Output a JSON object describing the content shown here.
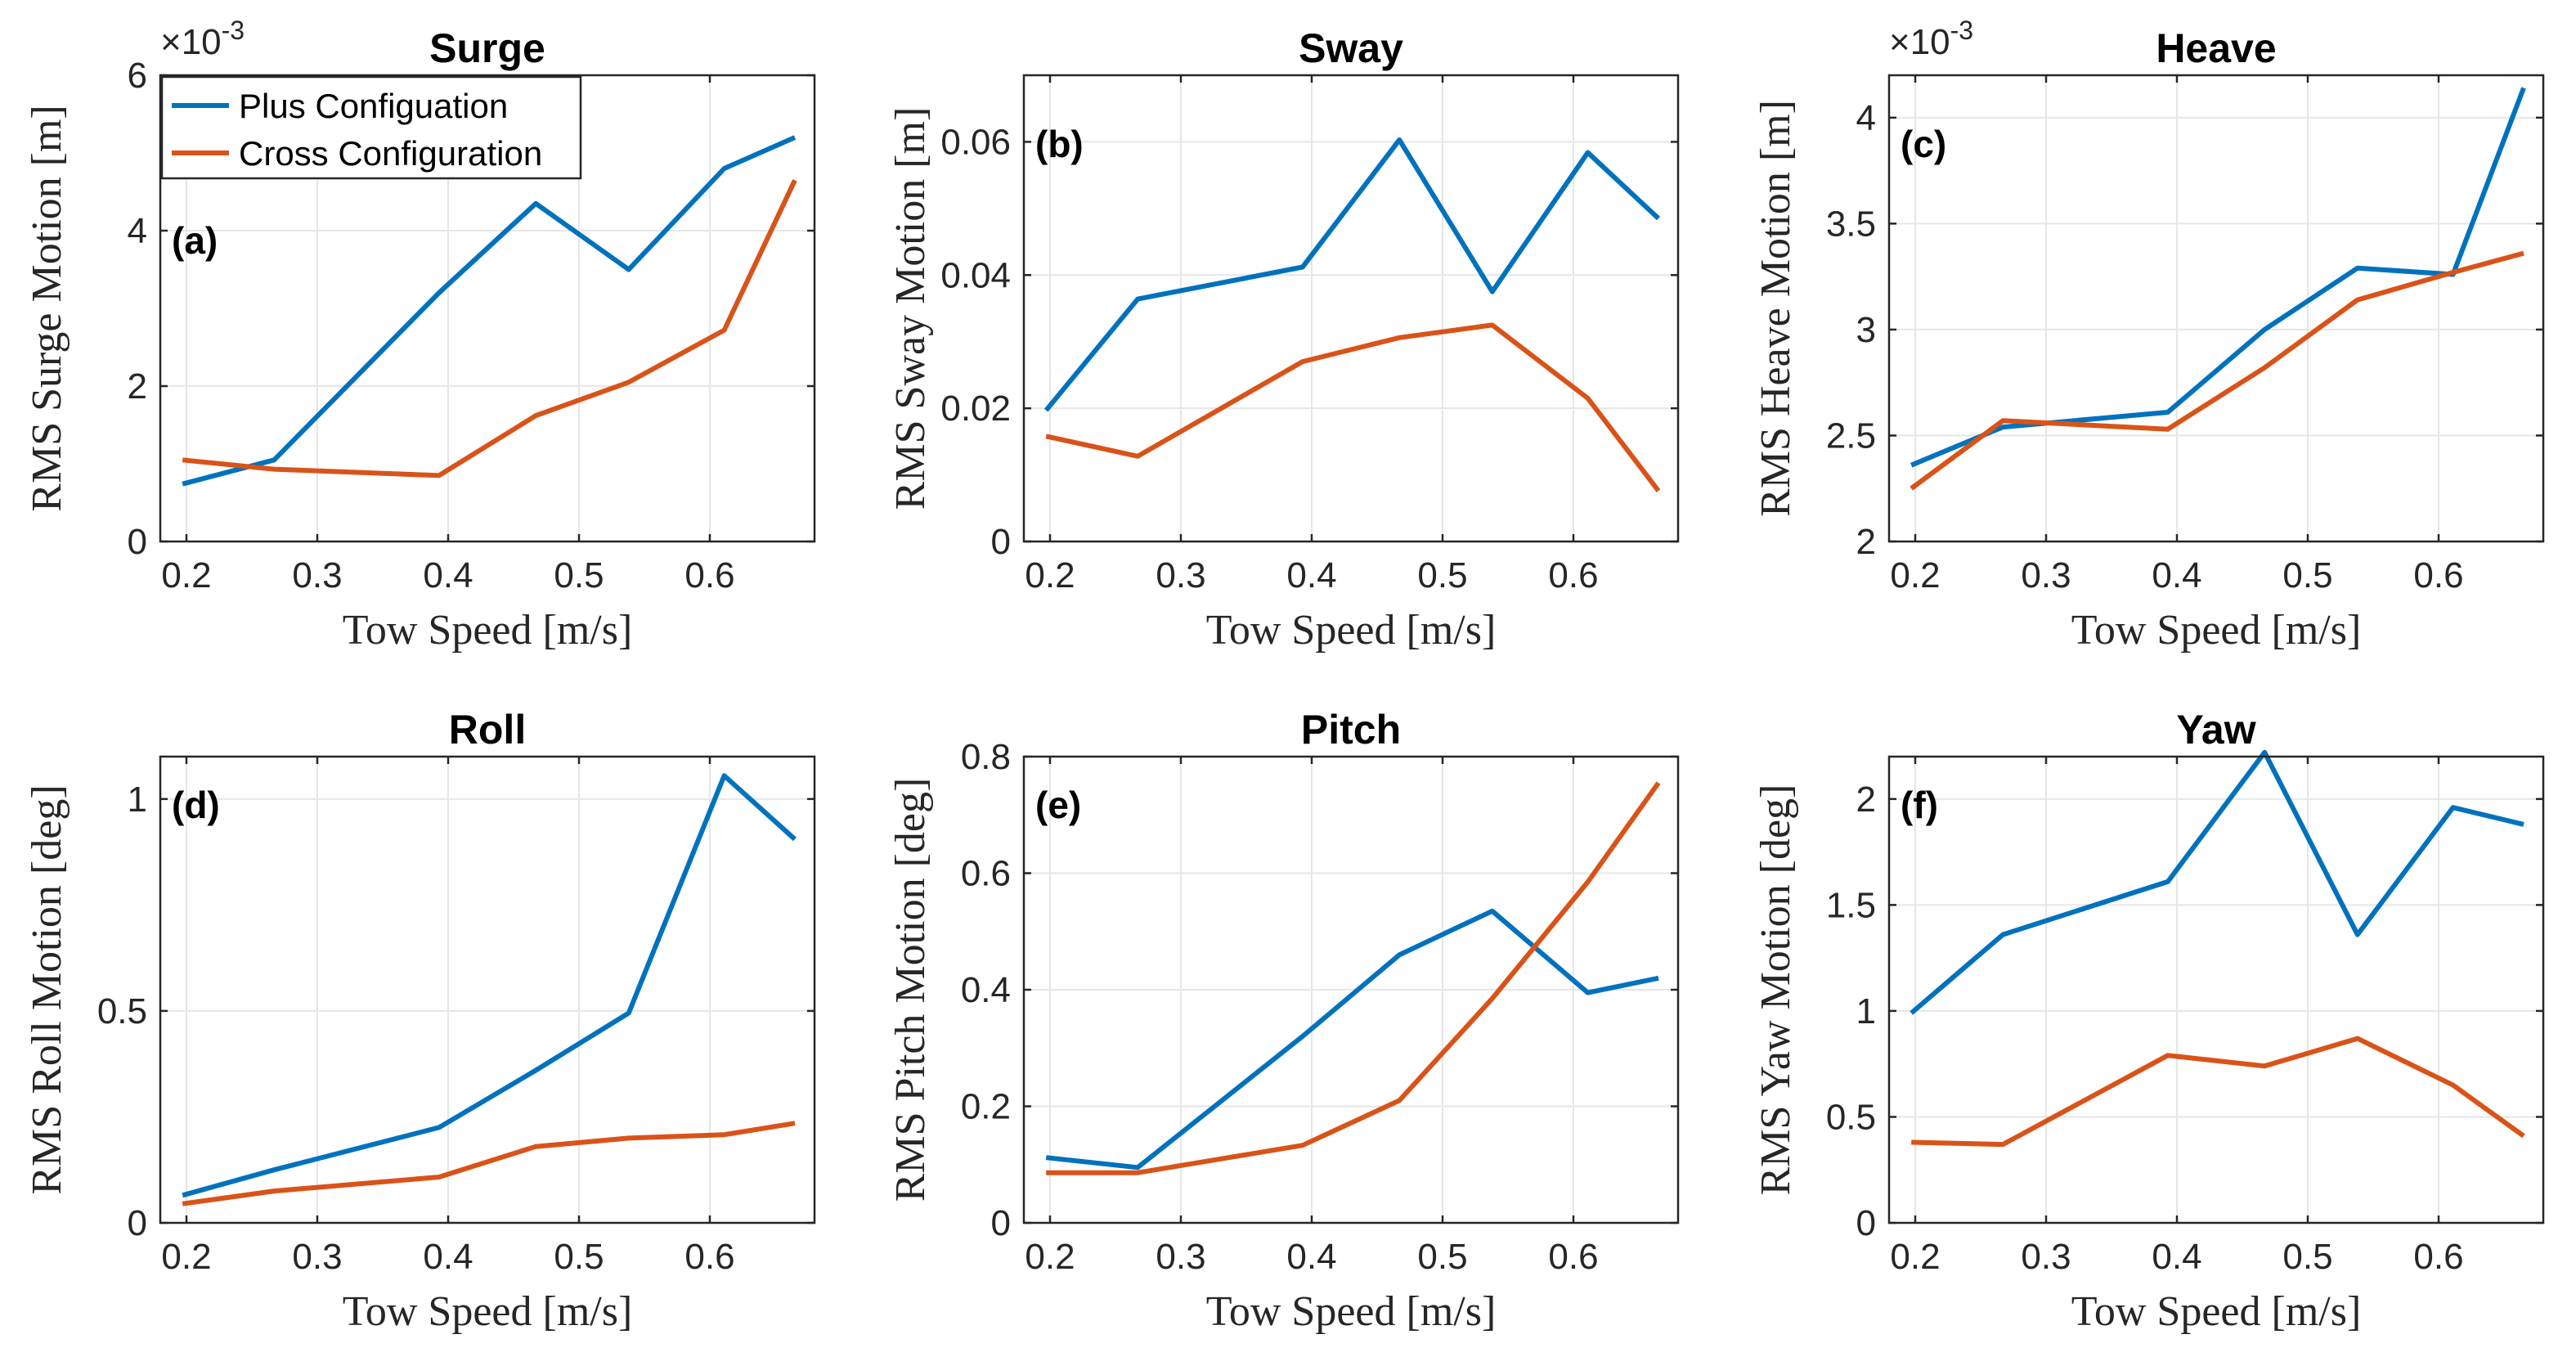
{
  "colors": {
    "plus": "#0072BD",
    "cross": "#D95319"
  },
  "legend": {
    "placement": "top-left of panel (a)",
    "entries": [
      "Plus Configuation",
      "Cross Configuration"
    ]
  },
  "chart_data": [
    {
      "type": "line",
      "panel_label": "(a)",
      "title": "Surge",
      "xlabel": "Tow Speed [m/s]",
      "ylabel": "RMS Surge Motion [m]",
      "exponent_base": "×10",
      "exponent_power": "-3",
      "xlim": [
        0.18,
        0.68
      ],
      "ylim": [
        0,
        6
      ],
      "xticks": [
        0.2,
        0.3,
        0.4,
        0.5,
        0.6
      ],
      "xtick_labels": [
        "0.2",
        "0.3",
        "0.4",
        "0.5",
        "0.6"
      ],
      "yticks": [
        0,
        2,
        4,
        6
      ],
      "ytick_labels": [
        "0",
        "2",
        "4",
        "6"
      ],
      "x": [
        0.197,
        0.267,
        0.393,
        0.467,
        0.538,
        0.611,
        0.665
      ],
      "series": [
        {
          "name": "Plus Configuation",
          "values": [
            0.74,
            1.05,
            3.2,
            4.35,
            3.5,
            4.8,
            5.2
          ]
        },
        {
          "name": "Cross Configuration",
          "values": [
            1.05,
            0.93,
            0.85,
            1.62,
            2.05,
            2.72,
            4.65
          ]
        }
      ]
    },
    {
      "type": "line",
      "panel_label": "(b)",
      "title": "Sway",
      "xlabel": "Tow Speed [m/s]",
      "ylabel": "RMS Sway Motion [m]",
      "xlim": [
        0.18,
        0.68
      ],
      "ylim": [
        0,
        0.07
      ],
      "xticks": [
        0.2,
        0.3,
        0.4,
        0.5,
        0.6
      ],
      "xtick_labels": [
        "0.2",
        "0.3",
        "0.4",
        "0.5",
        "0.6"
      ],
      "yticks": [
        0,
        0.02,
        0.04,
        0.06
      ],
      "ytick_labels": [
        "0",
        "0.02",
        "0.04",
        "0.06"
      ],
      "x": [
        0.197,
        0.267,
        0.393,
        0.467,
        0.538,
        0.611,
        0.665
      ],
      "series": [
        {
          "name": "Plus Configuation",
          "values": [
            0.0197,
            0.0364,
            0.0412,
            0.0603,
            0.0375,
            0.0584,
            0.0485
          ]
        },
        {
          "name": "Cross Configuration",
          "values": [
            0.0158,
            0.0128,
            0.027,
            0.0306,
            0.0325,
            0.0215,
            0.0076
          ]
        }
      ]
    },
    {
      "type": "line",
      "panel_label": "(c)",
      "title": "Heave",
      "xlabel": "Tow Speed [m/s]",
      "ylabel": "RMS Heave Motion [m]",
      "exponent_base": "×10",
      "exponent_power": "-3",
      "xlim": [
        0.18,
        0.68
      ],
      "ylim": [
        2,
        4.2
      ],
      "xticks": [
        0.2,
        0.3,
        0.4,
        0.5,
        0.6
      ],
      "xtick_labels": [
        "0.2",
        "0.3",
        "0.4",
        "0.5",
        "0.6"
      ],
      "yticks": [
        2,
        2.5,
        3,
        3.5,
        4
      ],
      "ytick_labels": [
        "2",
        "2.5",
        "3",
        "3.5",
        "4"
      ],
      "x": [
        0.197,
        0.267,
        0.393,
        0.467,
        0.538,
        0.611,
        0.665
      ],
      "series": [
        {
          "name": "Plus Configuation",
          "values": [
            2.36,
            2.54,
            2.61,
            3.0,
            3.29,
            3.26,
            4.14
          ]
        },
        {
          "name": "Cross Configuration",
          "values": [
            2.25,
            2.57,
            2.53,
            2.82,
            3.14,
            3.27,
            3.36
          ]
        }
      ]
    },
    {
      "type": "line",
      "panel_label": "(d)",
      "title": "Roll",
      "xlabel": "Tow Speed [m/s]",
      "ylabel": "RMS Roll Motion [deg]",
      "xlim": [
        0.18,
        0.68
      ],
      "ylim": [
        0,
        1.1
      ],
      "xticks": [
        0.2,
        0.3,
        0.4,
        0.5,
        0.6
      ],
      "xtick_labels": [
        "0.2",
        "0.3",
        "0.4",
        "0.5",
        "0.6"
      ],
      "yticks": [
        0,
        0.5,
        1
      ],
      "ytick_labels": [
        "0",
        "0.5",
        "1"
      ],
      "x": [
        0.197,
        0.267,
        0.393,
        0.467,
        0.538,
        0.611,
        0.665
      ],
      "series": [
        {
          "name": "Plus Configuation",
          "values": [
            0.065,
            0.125,
            0.225,
            0.36,
            0.495,
            1.055,
            0.905
          ]
        },
        {
          "name": "Cross Configuration",
          "values": [
            0.045,
            0.075,
            0.108,
            0.18,
            0.2,
            0.208,
            0.235
          ]
        }
      ]
    },
    {
      "type": "line",
      "panel_label": "(e)",
      "title": "Pitch",
      "xlabel": "Tow Speed [m/s]",
      "ylabel": "RMS Pitch Motion [deg]",
      "xlim": [
        0.18,
        0.68
      ],
      "ylim": [
        0,
        0.8
      ],
      "xticks": [
        0.2,
        0.3,
        0.4,
        0.5,
        0.6
      ],
      "xtick_labels": [
        "0.2",
        "0.3",
        "0.4",
        "0.5",
        "0.6"
      ],
      "yticks": [
        0,
        0.2,
        0.4,
        0.6,
        0.8
      ],
      "ytick_labels": [
        "0",
        "0.2",
        "0.4",
        "0.6",
        "0.8"
      ],
      "x": [
        0.197,
        0.267,
        0.393,
        0.467,
        0.538,
        0.611,
        0.665
      ],
      "series": [
        {
          "name": "Plus Configuation",
          "values": [
            0.112,
            0.095,
            0.32,
            0.46,
            0.535,
            0.395,
            0.42
          ]
        },
        {
          "name": "Cross Configuration",
          "values": [
            0.086,
            0.086,
            0.133,
            0.21,
            0.385,
            0.585,
            0.755
          ]
        }
      ]
    },
    {
      "type": "line",
      "panel_label": "(f)",
      "title": "Yaw",
      "xlabel": "Tow Speed [m/s]",
      "ylabel": "RMS Yaw Motion [deg]",
      "xlim": [
        0.18,
        0.68
      ],
      "ylim": [
        0,
        2.2
      ],
      "xticks": [
        0.2,
        0.3,
        0.4,
        0.5,
        0.6
      ],
      "xtick_labels": [
        "0.2",
        "0.3",
        "0.4",
        "0.5",
        "0.6"
      ],
      "yticks": [
        0,
        0.5,
        1,
        1.5,
        2
      ],
      "ytick_labels": [
        "0",
        "0.5",
        "1",
        "1.5",
        "2"
      ],
      "x": [
        0.197,
        0.267,
        0.393,
        0.467,
        0.538,
        0.611,
        0.665
      ],
      "series": [
        {
          "name": "Plus Configuation",
          "values": [
            0.99,
            1.36,
            1.61,
            2.22,
            1.36,
            1.96,
            1.88
          ]
        },
        {
          "name": "Cross Configuration",
          "values": [
            0.38,
            0.37,
            0.79,
            0.74,
            0.87,
            0.65,
            0.41
          ]
        }
      ]
    }
  ]
}
